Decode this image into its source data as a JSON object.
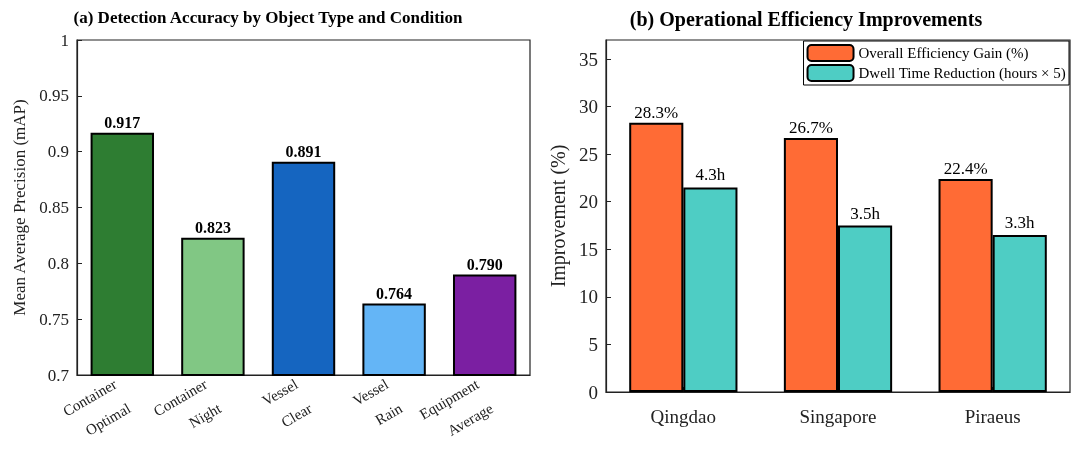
{
  "chart_data": [
    {
      "type": "bar",
      "title": "(a) Detection Accuracy by Object Type and Condition",
      "ylabel": "Mean Average Precision (mAP)",
      "categories": [
        "Container\nOptimal",
        "Container\nNight",
        "Vessel\nClear",
        "Vessel\nRain",
        "Equipment\nAverage"
      ],
      "values": [
        0.917,
        0.823,
        0.891,
        0.764,
        0.79
      ],
      "colors": [
        "#2e7d32",
        "#81c784",
        "#1565c0",
        "#64b5f6",
        "#7b1fa2"
      ],
      "value_labels": [
        "0.917",
        "0.823",
        "0.891",
        "0.764",
        "0.790"
      ],
      "ylim": [
        0.7,
        1
      ],
      "yticks": [
        0.7,
        0.75,
        0.8,
        0.85,
        0.9,
        0.95,
        1
      ],
      "grid": false,
      "legend": false
    },
    {
      "type": "bar",
      "title": "(b) Operational Efficiency Improvements",
      "ylabel": "Improvement (%)",
      "categories": [
        "Qingdao",
        "Singapore",
        "Piraeus"
      ],
      "series": [
        {
          "name": "Overall Efficiency Gain (%)",
          "color": "#ff6b35",
          "values": [
            28.3,
            26.7,
            22.4
          ],
          "value_labels": [
            "28.3%",
            "26.7%",
            "22.4%"
          ]
        },
        {
          "name": "Dwell Time Reduction (hours × 5)",
          "color": "#4ecdc4",
          "values": [
            21.5,
            17.5,
            16.5
          ]
        }
      ],
      "annotations": [
        {
          "text": "4.3h",
          "x": "Qingdao",
          "y": 21.5
        },
        {
          "text": "3.5h",
          "x": "Singapore",
          "y": 17.5
        },
        {
          "text": "3.3h",
          "x": "Piraeus",
          "y": 16.5
        }
      ],
      "ylim": [
        0,
        37
      ],
      "yticks": [
        0,
        5,
        10,
        15,
        20,
        25,
        30,
        35
      ],
      "grid": false,
      "legend": "top right"
    }
  ]
}
